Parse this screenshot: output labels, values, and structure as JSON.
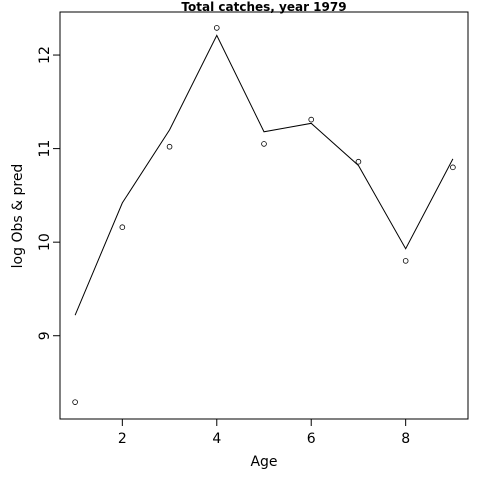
{
  "chart_data": {
    "type": "scatter",
    "title": "Total catches, year 1979",
    "xlabel": "Age",
    "ylabel": "log Obs & pred",
    "xlim": [
      0.68,
      9.32
    ],
    "ylim": [
      8.11,
      12.46
    ],
    "x_ticks": [
      2,
      4,
      6,
      8
    ],
    "y_ticks": [
      9,
      10,
      11,
      12
    ],
    "grid": false,
    "series": [
      {
        "style": "points",
        "x": [
          1,
          2,
          3,
          4,
          5,
          6,
          7,
          8,
          9
        ],
        "y": [
          8.29,
          10.16,
          11.02,
          12.29,
          11.05,
          11.31,
          10.86,
          9.8,
          10.8
        ]
      },
      {
        "style": "line",
        "x": [
          1,
          2,
          3,
          4,
          5,
          6,
          7,
          8,
          9
        ],
        "y": [
          9.22,
          10.42,
          11.2,
          12.21,
          11.18,
          11.27,
          10.82,
          9.93,
          10.89
        ]
      }
    ]
  }
}
